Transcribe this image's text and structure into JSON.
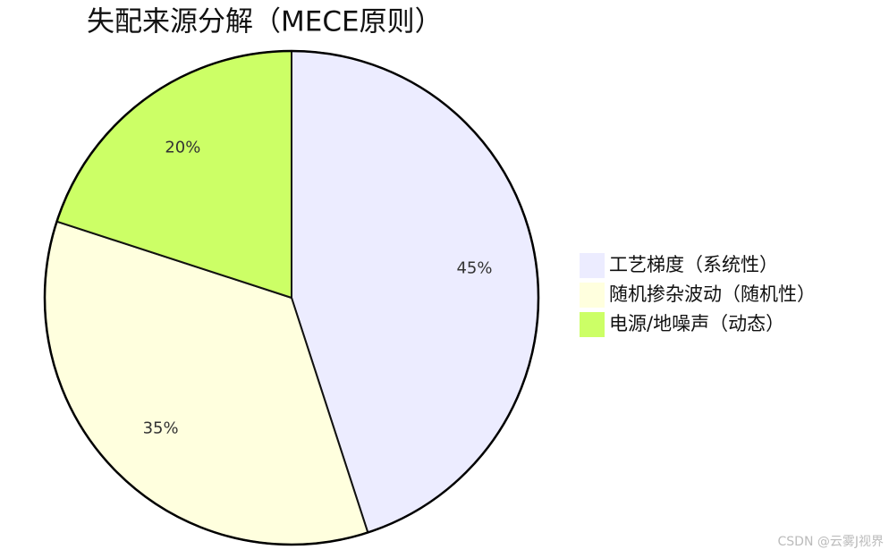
{
  "chart_data": {
    "type": "pie",
    "title": "失配来源分解（MECE原则）",
    "categories": [
      "工艺梯度（系统性）",
      "随机掺杂波动（随机性）",
      "电源/地噪声（动态）"
    ],
    "values": [
      45,
      35,
      20
    ],
    "value_labels": [
      "45%",
      "35%",
      "20%"
    ],
    "colors": [
      "#ececff",
      "#ffffde",
      "#ccff66"
    ]
  },
  "watermark": "CSDN @云雾J视界"
}
